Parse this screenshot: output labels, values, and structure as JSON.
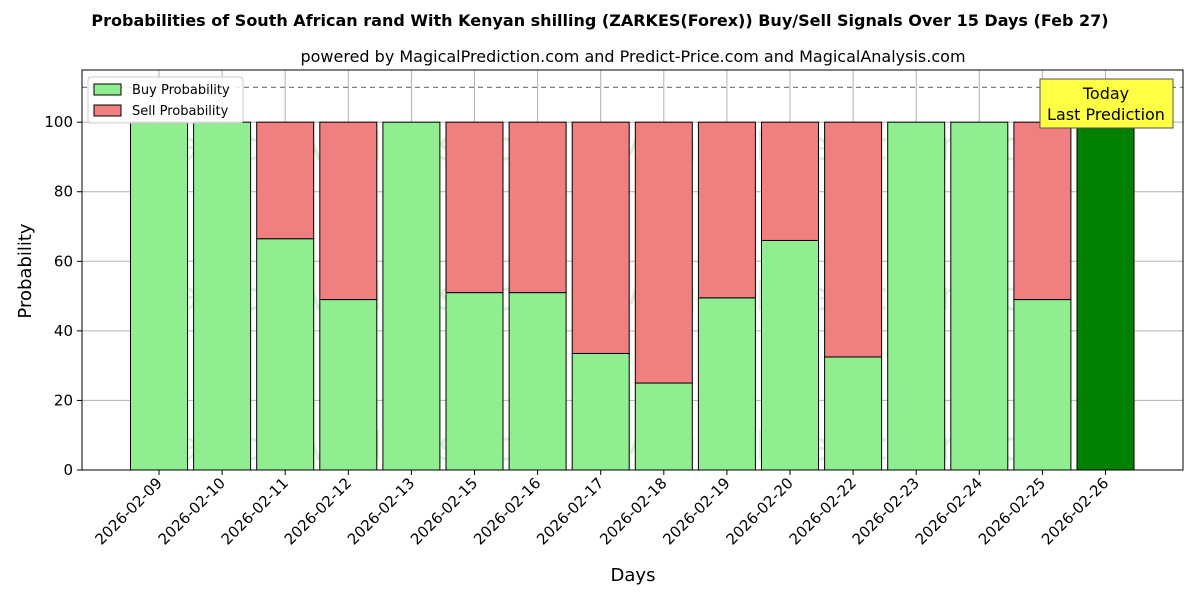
{
  "chart_data": {
    "type": "bar",
    "stacked": true,
    "title": "Probabilities of South African rand With Kenyan shilling (ZARKES(Forex)) Buy/Sell Signals Over 15 Days (Feb 27)",
    "subtitle": "powered by MagicalPrediction.com and Predict-Price.com and MagicalAnalysis.com",
    "xlabel": "Days",
    "ylabel": "Probability",
    "ylim": [
      0,
      115
    ],
    "yticks": [
      0,
      20,
      40,
      60,
      80,
      100
    ],
    "grid": true,
    "legend_position": "top-left",
    "reference_line": 110,
    "categories": [
      "2026-02-09",
      "2026-02-10",
      "2026-02-11",
      "2026-02-12",
      "2026-02-13",
      "2026-02-15",
      "2026-02-16",
      "2026-02-17",
      "2026-02-18",
      "2026-02-19",
      "2026-02-20",
      "2026-02-22",
      "2026-02-23",
      "2026-02-24",
      "2026-02-25",
      "2026-02-26"
    ],
    "series": [
      {
        "name": "Buy Probability",
        "color": "#90ee90",
        "values": [
          100,
          100,
          66.5,
          49,
          100,
          51,
          51,
          33.5,
          25,
          49.5,
          66,
          32.5,
          100,
          100,
          49,
          100
        ]
      },
      {
        "name": "Sell Probability",
        "color": "#f08080",
        "values": [
          0,
          0,
          33.5,
          51,
          0,
          49,
          49,
          66.5,
          75,
          50.5,
          34,
          67.5,
          0,
          0,
          51,
          0
        ]
      }
    ],
    "highlight": {
      "index": 15,
      "color": "#008000"
    },
    "annotation": {
      "line1": "Today",
      "line2": "Last Prediction",
      "background": "#ffff44"
    },
    "watermarks": [
      "MagicalAnalysis.com",
      "MagicalPrediction.com"
    ]
  }
}
